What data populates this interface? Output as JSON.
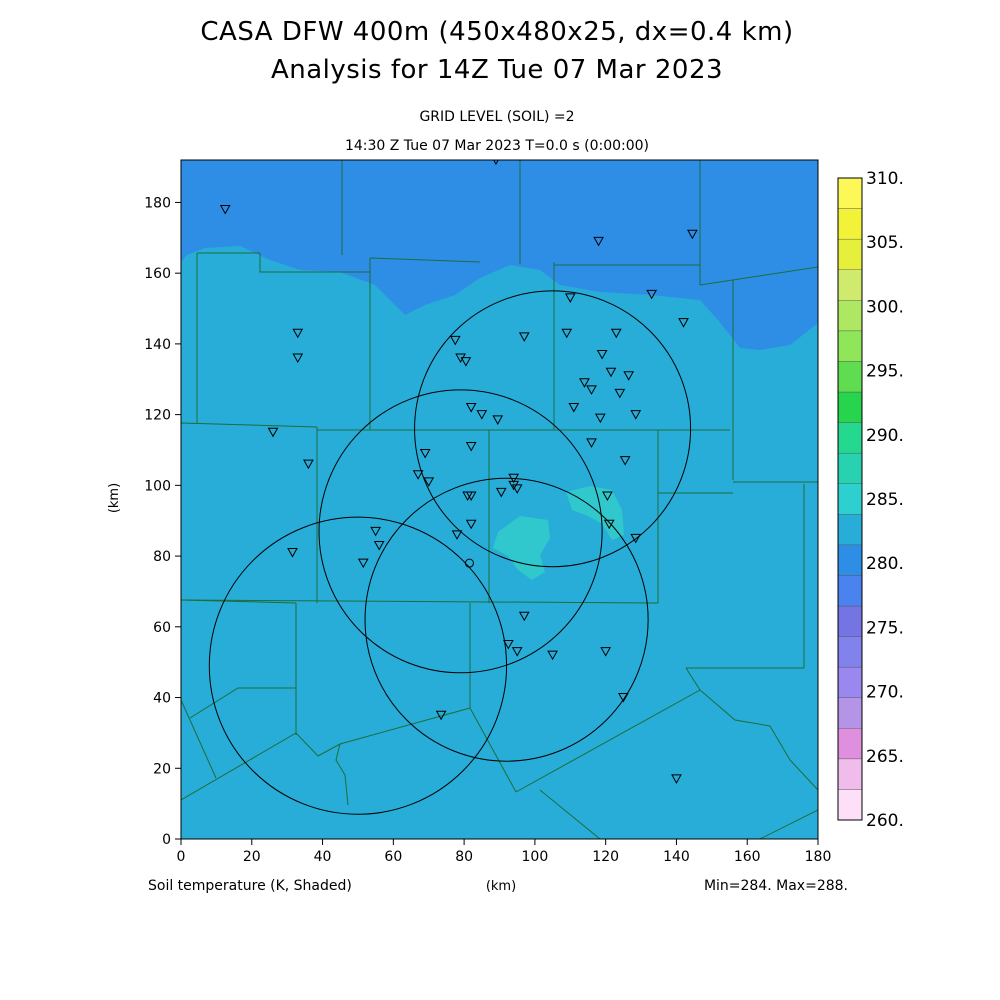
{
  "header": {
    "title_line1": "CASA DFW 400m (450x480x25, dx=0.4 km)",
    "title_line2": "Analysis for 14Z Tue 07 Mar 2023",
    "subtitle_line1": "GRID LEVEL (SOIL) =2",
    "subtitle_line2": "14:30 Z Tue 07 Mar 2023    T=0.0 s (0:00:00)"
  },
  "footer": {
    "variable_label": "Soil temperature (K, Shaded)",
    "xunit_label": "(km)",
    "minmax_label": "Min=284. Max=288."
  },
  "chart_data": {
    "type": "heatmap",
    "ylabel": "(km)",
    "xlabel": "(km)",
    "xlim": [
      0,
      180
    ],
    "ylim": [
      0,
      192
    ],
    "x_ticks": [
      "0",
      "20",
      "40",
      "60",
      "80",
      "100",
      "120",
      "140",
      "160",
      "180"
    ],
    "y_ticks": [
      "0",
      "20",
      "40",
      "60",
      "80",
      "100",
      "120",
      "140",
      "160",
      "180"
    ],
    "colorbar": {
      "levels": [
        "260.",
        "265.",
        "270.",
        "275.",
        "280.",
        "285.",
        "290.",
        "295.",
        "300.",
        "305.",
        "310."
      ],
      "colors": [
        "#fde0f8",
        "#f0bcec",
        "#de90de",
        "#b494e6",
        "#9a88f0",
        "#8282ec",
        "#7474e2",
        "#4a82f0",
        "#2e8ee6",
        "#28acd8",
        "#2ecfcf",
        "#28d2b0",
        "#24d890",
        "#26d44e",
        "#60dc50",
        "#8ee658",
        "#aee862",
        "#cfea6c",
        "#e6f03c",
        "#f2f238",
        "#fcf858"
      ]
    },
    "field_regions": [
      {
        "name": "cool-north",
        "value_k": 284,
        "color": "#2e8ee6"
      },
      {
        "name": "background",
        "value_k": 286,
        "color": "#28acd8"
      },
      {
        "name": "warm-center",
        "value_k": 288,
        "color": "#30c8cc"
      }
    ],
    "radar_rings": [
      {
        "cx": 105,
        "cy": 116,
        "r": 39
      },
      {
        "cx": 79,
        "cy": 87,
        "r": 40
      },
      {
        "cx": 92,
        "cy": 62,
        "r": 40
      },
      {
        "cx": 50,
        "cy": 49,
        "r": 42
      }
    ],
    "stations": [
      [
        12.5,
        178
      ],
      [
        89,
        192
      ],
      [
        118,
        169
      ],
      [
        144.5,
        171
      ],
      [
        133,
        154
      ],
      [
        110,
        153
      ],
      [
        142,
        146
      ],
      [
        33,
        143
      ],
      [
        33,
        136
      ],
      [
        77.5,
        141
      ],
      [
        97,
        142
      ],
      [
        109,
        143
      ],
      [
        123,
        143
      ],
      [
        119,
        137
      ],
      [
        79,
        136
      ],
      [
        80.5,
        135
      ],
      [
        121.5,
        132
      ],
      [
        126.5,
        131
      ],
      [
        114,
        129
      ],
      [
        116,
        127
      ],
      [
        124,
        126
      ],
      [
        82,
        122
      ],
      [
        85,
        120
      ],
      [
        89.5,
        118.5
      ],
      [
        111,
        122
      ],
      [
        118.5,
        119
      ],
      [
        128.5,
        120
      ],
      [
        26,
        115
      ],
      [
        36,
        106
      ],
      [
        69,
        109
      ],
      [
        82,
        111
      ],
      [
        116,
        112
      ],
      [
        125.5,
        107
      ],
      [
        67,
        103
      ],
      [
        70,
        101
      ],
      [
        94,
        102
      ],
      [
        94,
        100
      ],
      [
        95,
        99
      ],
      [
        81,
        97
      ],
      [
        82,
        97
      ],
      [
        90.5,
        98
      ],
      [
        120.5,
        97
      ],
      [
        121,
        89
      ],
      [
        82,
        89
      ],
      [
        78,
        86
      ],
      [
        55,
        87
      ],
      [
        56,
        83
      ],
      [
        31.5,
        81
      ],
      [
        128.5,
        85
      ],
      [
        51.5,
        78
      ],
      [
        97,
        63
      ],
      [
        92.5,
        55
      ],
      [
        95,
        53
      ],
      [
        105,
        52
      ],
      [
        120,
        53
      ],
      [
        125,
        40
      ],
      [
        73.5,
        35
      ],
      [
        140,
        17
      ]
    ],
    "open_circle_station": [
      81.5,
      78
    ]
  }
}
